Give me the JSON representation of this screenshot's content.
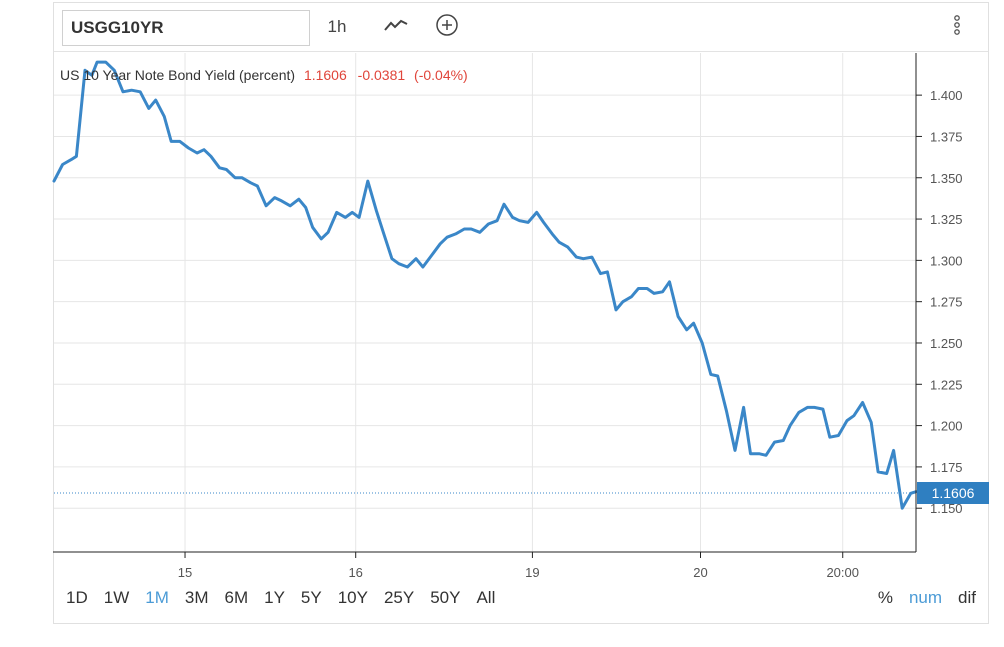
{
  "toolbar": {
    "symbol": "USGG10YR",
    "interval": "1h",
    "chart_type_icon": "line-chart-icon",
    "add_icon": "plus-circle-icon",
    "menu_icon": "vertical-dots-icon"
  },
  "legend": {
    "name": "US 10 Year Note Bond Yield (percent)",
    "last": "1.1606",
    "change": "-0.0381",
    "change_pct": "(-0.04%)"
  },
  "colors": {
    "line": "#3a87c8",
    "last_badge": "#2f7fc1",
    "change": "#e0453a",
    "active": "#4b9bd6"
  },
  "ranges": [
    "1D",
    "1W",
    "1M",
    "3M",
    "6M",
    "1Y",
    "5Y",
    "10Y",
    "25Y",
    "50Y",
    "All"
  ],
  "active_range": "1M",
  "units": [
    "%",
    "num",
    "dif"
  ],
  "active_unit": "num",
  "chart_data": {
    "type": "line",
    "title": "",
    "xlabel": "",
    "ylabel": "",
    "x_ticks": [
      {
        "label": "15",
        "x": 15.2
      },
      {
        "label": "16",
        "x": 35
      },
      {
        "label": "19",
        "x": 55.5
      },
      {
        "label": "20",
        "x": 75
      },
      {
        "label": "20:00",
        "x": 91.5
      }
    ],
    "xlim": [
      0,
      100
    ],
    "y_ticks": [
      1.4,
      1.375,
      1.35,
      1.325,
      1.3,
      1.275,
      1.25,
      1.225,
      1.2,
      1.175,
      1.15
    ],
    "ylim": [
      1.1235,
      1.4255
    ],
    "last_value": 1.1606,
    "grid": true,
    "series": [
      {
        "values": [
          [
            0,
            1.348
          ],
          [
            1,
            1.358
          ],
          [
            2,
            1.361
          ],
          [
            2.6,
            1.363
          ],
          [
            3.6,
            1.415
          ],
          [
            4.4,
            1.412
          ],
          [
            5,
            1.42
          ],
          [
            6,
            1.42
          ],
          [
            7,
            1.415
          ],
          [
            8,
            1.402
          ],
          [
            9,
            1.403
          ],
          [
            10,
            1.402
          ],
          [
            11,
            1.392
          ],
          [
            11.8,
            1.397
          ],
          [
            12.8,
            1.387
          ],
          [
            13.6,
            1.372
          ],
          [
            14.6,
            1.372
          ],
          [
            15.6,
            1.368
          ],
          [
            16.6,
            1.365
          ],
          [
            17.4,
            1.367
          ],
          [
            18.2,
            1.363
          ],
          [
            19.2,
            1.356
          ],
          [
            20,
            1.355
          ],
          [
            21,
            1.35
          ],
          [
            21.8,
            1.35
          ],
          [
            22.8,
            1.347
          ],
          [
            23.6,
            1.345
          ],
          [
            24.6,
            1.333
          ],
          [
            25.6,
            1.338
          ],
          [
            26.4,
            1.336
          ],
          [
            27.4,
            1.333
          ],
          [
            28.4,
            1.337
          ],
          [
            29.2,
            1.332
          ],
          [
            30,
            1.32
          ],
          [
            31,
            1.313
          ],
          [
            31.8,
            1.317
          ],
          [
            32.8,
            1.329
          ],
          [
            33.8,
            1.326
          ],
          [
            34.6,
            1.329
          ],
          [
            35.4,
            1.326
          ],
          [
            36.4,
            1.348
          ],
          [
            37.4,
            1.33
          ],
          [
            38.2,
            1.317
          ],
          [
            39.2,
            1.301
          ],
          [
            40,
            1.298
          ],
          [
            41,
            1.296
          ],
          [
            42,
            1.301
          ],
          [
            42.8,
            1.296
          ],
          [
            43.8,
            1.303
          ],
          [
            44.8,
            1.31
          ],
          [
            45.6,
            1.314
          ],
          [
            46.6,
            1.316
          ],
          [
            47.6,
            1.319
          ],
          [
            48.4,
            1.319
          ],
          [
            49.4,
            1.317
          ],
          [
            50.4,
            1.322
          ],
          [
            51.4,
            1.324
          ],
          [
            52.2,
            1.334
          ],
          [
            53.2,
            1.326
          ],
          [
            54,
            1.324
          ],
          [
            55,
            1.323
          ],
          [
            56,
            1.329
          ],
          [
            56.8,
            1.323
          ],
          [
            57.8,
            1.316
          ],
          [
            58.6,
            1.311
          ],
          [
            59.6,
            1.308
          ],
          [
            60.6,
            1.302
          ],
          [
            61.4,
            1.301
          ],
          [
            62.4,
            1.302
          ],
          [
            63.4,
            1.292
          ],
          [
            64.2,
            1.293
          ],
          [
            65.2,
            1.27
          ],
          [
            66,
            1.275
          ],
          [
            67,
            1.278
          ],
          [
            67.8,
            1.283
          ],
          [
            68.8,
            1.283
          ],
          [
            69.6,
            1.28
          ],
          [
            70.6,
            1.281
          ],
          [
            71.4,
            1.287
          ],
          [
            72.4,
            1.266
          ],
          [
            73.4,
            1.258
          ],
          [
            74.2,
            1.262
          ],
          [
            75.2,
            1.25
          ],
          [
            76.2,
            1.231
          ],
          [
            77,
            1.23
          ],
          [
            78,
            1.209
          ],
          [
            79,
            1.185
          ],
          [
            80,
            1.211
          ],
          [
            80.8,
            1.183
          ],
          [
            81.8,
            1.183
          ],
          [
            82.6,
            1.182
          ],
          [
            83.6,
            1.19
          ],
          [
            84.6,
            1.191
          ],
          [
            85.4,
            1.2
          ],
          [
            86.4,
            1.208
          ],
          [
            87.4,
            1.211
          ],
          [
            88.2,
            1.211
          ],
          [
            89.2,
            1.21
          ],
          [
            90,
            1.193
          ],
          [
            91,
            1.194
          ],
          [
            92,
            1.203
          ],
          [
            92.8,
            1.206
          ],
          [
            93.8,
            1.214
          ],
          [
            94.8,
            1.202
          ],
          [
            95.6,
            1.172
          ],
          [
            96.6,
            1.171
          ],
          [
            97.4,
            1.185
          ],
          [
            98.4,
            1.15
          ],
          [
            99.4,
            1.159
          ],
          [
            100,
            1.16
          ]
        ]
      }
    ]
  }
}
